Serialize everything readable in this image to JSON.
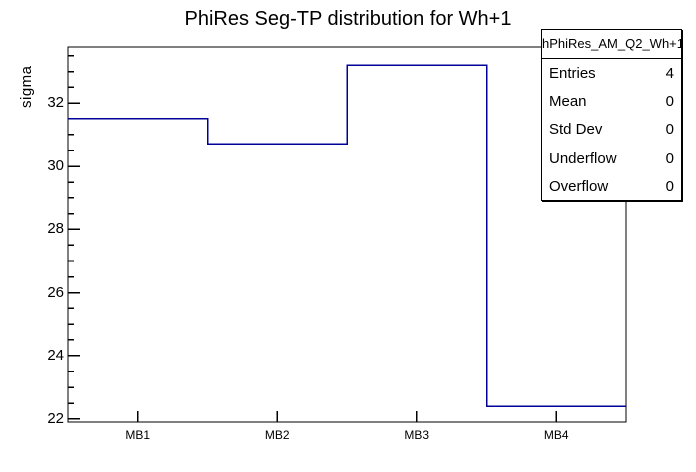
{
  "page": {
    "background": "#ffffff"
  },
  "chart_data": {
    "type": "bar",
    "subtype": "root-step-histogram",
    "title": "PhiRes Seg-TP distribution for Wh+1",
    "xlabel": "",
    "ylabel": "sigma",
    "categories": [
      "MB1",
      "MB2",
      "MB3",
      "MB4"
    ],
    "values": [
      31.5,
      30.7,
      33.2,
      22.4
    ],
    "ylim": [
      21.9,
      33.78
    ],
    "yticks": [
      22,
      24,
      26,
      28,
      30,
      32
    ],
    "minor_tick_step": 0.5,
    "grid": false,
    "legend_position": "none",
    "line_color": "#000099",
    "frame_color": "#000000",
    "background_color": "#ffffff"
  },
  "stats": {
    "title": "hPhiRes_AM_Q2_Wh+1",
    "rows": [
      {
        "label": "Entries",
        "value": "4"
      },
      {
        "label": "Mean",
        "value": "0"
      },
      {
        "label": "Std Dev",
        "value": "0"
      },
      {
        "label": "Underflow",
        "value": "0"
      },
      {
        "label": "Overflow",
        "value": "0"
      }
    ]
  }
}
